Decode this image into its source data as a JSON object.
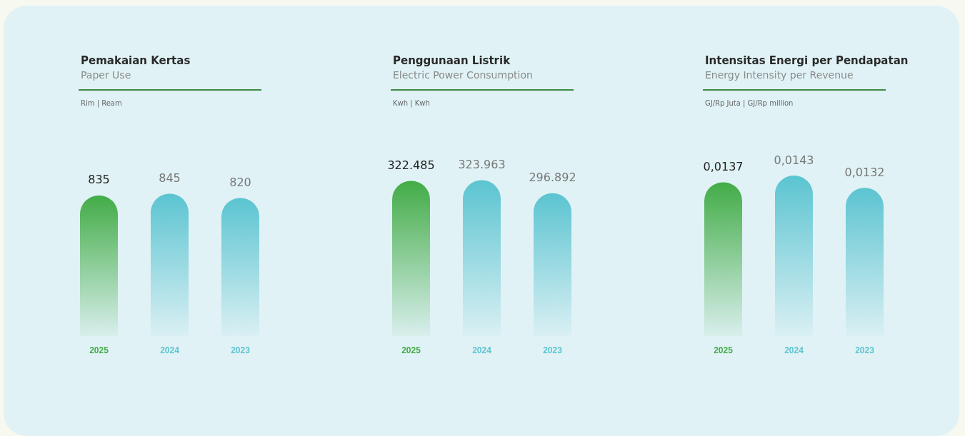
{
  "chart_data": [
    {
      "type": "bar",
      "title": "Pemakaian Kertas",
      "subtitle": "Paper Use",
      "annotations": [
        "Rim | Ream"
      ],
      "categories": [
        "2025",
        "2024",
        "2023"
      ],
      "values": [
        835,
        845,
        820
      ],
      "value_labels": [
        "835",
        "845",
        "820"
      ],
      "colors": [
        "#43ac47",
        "#5bc4d1",
        "#5bc4d1"
      ]
    },
    {
      "type": "bar",
      "title": "Penggunaan Listrik",
      "subtitle": "Electric Power Consumption",
      "annotations": [
        "Kwh | Kwh"
      ],
      "categories": [
        "2025",
        "2024",
        "2023"
      ],
      "values": [
        322485,
        323963,
        296892
      ],
      "value_labels": [
        "322.485",
        "323.963",
        "296.892"
      ],
      "colors": [
        "#43ac47",
        "#5bc4d1",
        "#5bc4d1"
      ]
    },
    {
      "type": "bar",
      "title": "Intensitas Energi per Pendapatan",
      "subtitle": "Energy Intensity per Revenue",
      "annotations": [
        "GJ/Rp Juta | GJ/Rp million"
      ],
      "categories": [
        "2025",
        "2024",
        "2023"
      ],
      "values": [
        0.0137,
        0.0143,
        0.0132
      ],
      "value_labels": [
        "0,0137",
        "0,0143",
        "0,0132"
      ],
      "colors": [
        "#43ac47",
        "#5bc4d1",
        "#5bc4d1"
      ]
    }
  ]
}
